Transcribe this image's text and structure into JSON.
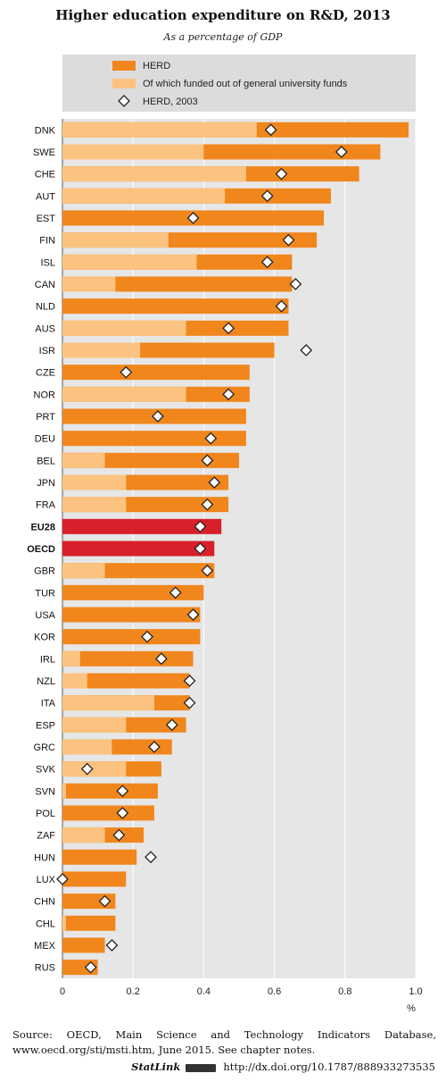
{
  "chart_data": {
    "type": "bar",
    "orientation": "horizontal",
    "title": "Higher education expenditure on R&D, 2013",
    "subtitle": "As a percentage of GDP",
    "xlabel": "%",
    "xlim": [
      0,
      1.0
    ],
    "xticks": [
      "0",
      "0.2",
      "0.4",
      "0.6",
      "0.8",
      "1.0"
    ],
    "legend_position": "top",
    "grid": true,
    "categories": [
      "DNK",
      "SWE",
      "CHE",
      "AUT",
      "EST",
      "FIN",
      "ISL",
      "CAN",
      "NLD",
      "AUS",
      "ISR",
      "CZE",
      "NOR",
      "PRT",
      "DEU",
      "BEL",
      "JPN",
      "FRA",
      "EU28",
      "OECD",
      "GBR",
      "TUR",
      "USA",
      "KOR",
      "IRL",
      "NZL",
      "ITA",
      "ESP",
      "GRC",
      "SVK",
      "SVN",
      "POL",
      "ZAF",
      "HUN",
      "LUX",
      "CHN",
      "CHL",
      "MEX",
      "RUS"
    ],
    "highlighted": [
      "EU28",
      "OECD"
    ],
    "series": [
      {
        "name": "HERD",
        "type": "bar",
        "color": "#f0861c",
        "values": [
          0.98,
          0.9,
          0.84,
          0.76,
          0.74,
          0.72,
          0.65,
          0.65,
          0.64,
          0.64,
          0.6,
          0.53,
          0.53,
          0.52,
          0.52,
          0.5,
          0.47,
          0.47,
          0.45,
          0.43,
          0.43,
          0.4,
          0.39,
          0.39,
          0.37,
          0.36,
          0.36,
          0.35,
          0.31,
          0.28,
          0.27,
          0.26,
          0.23,
          0.21,
          0.18,
          0.15,
          0.15,
          0.12,
          0.1
        ]
      },
      {
        "name": "Of which funded out of general university funds",
        "type": "bar",
        "color": "#fbc37f",
        "values": [
          0.55,
          0.4,
          0.52,
          0.46,
          null,
          0.3,
          0.38,
          0.15,
          null,
          0.35,
          0.22,
          null,
          0.35,
          null,
          null,
          0.12,
          0.18,
          0.18,
          null,
          null,
          0.12,
          null,
          null,
          null,
          0.05,
          0.07,
          0.26,
          0.18,
          0.14,
          0.18,
          0.01,
          null,
          0.12,
          null,
          null,
          null,
          0.01,
          null,
          null
        ]
      },
      {
        "name": "HERD, 2003",
        "type": "marker",
        "color": "#ffffff",
        "values": [
          0.59,
          0.79,
          0.62,
          0.58,
          0.37,
          0.64,
          0.58,
          0.66,
          0.62,
          0.47,
          0.69,
          0.18,
          0.47,
          0.27,
          0.42,
          0.41,
          0.43,
          0.41,
          0.39,
          0.39,
          0.41,
          0.32,
          0.37,
          0.24,
          0.28,
          0.36,
          0.36,
          0.31,
          0.26,
          0.07,
          0.17,
          0.17,
          0.16,
          0.25,
          0.0,
          0.12,
          null,
          0.14,
          0.08
        ]
      }
    ],
    "highlight_color": "#d7202a"
  },
  "source_text": "Source: OECD, Main Science and Technology Indicators Database, www.oecd.org/sti/msti.htm, June 2015. See chapter notes.",
  "statlink": {
    "label": "StatLink",
    "url": "http://dx.doi.org/10.1787/888933273535",
    "logo_icon": "statlink-logo-icon"
  }
}
